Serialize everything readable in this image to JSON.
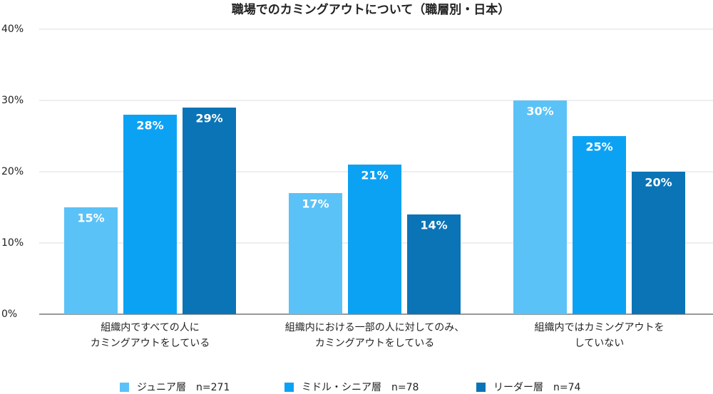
{
  "chart_data": {
    "type": "bar",
    "title": "職場でのカミングアウトについて（職層別・日本）",
    "categories": [
      [
        "組織内ですべての人に",
        "カミングアウトをしている"
      ],
      [
        "組織内における一部の人に対してのみ、",
        "カミングアウトをしている"
      ],
      [
        "組織内ではカミングアウトを",
        "していない"
      ]
    ],
    "series": [
      {
        "name": "ジュニア層　n=271",
        "color": "#5bc2f7",
        "values": [
          15,
          17,
          30
        ],
        "value_labels": [
          "15%",
          "17%",
          "30%"
        ]
      },
      {
        "name": "ミドル・シニア層　n=78",
        "color": "#0ca2f4",
        "values": [
          28,
          21,
          25
        ],
        "value_labels": [
          "28%",
          "21%",
          "25%"
        ]
      },
      {
        "name": "リーダー層　n=74",
        "color": "#0b74b6",
        "values": [
          29,
          14,
          20
        ],
        "value_labels": [
          "29%",
          "14%",
          "20%"
        ]
      }
    ],
    "ylim": [
      0,
      40
    ],
    "yticks": [
      {
        "value": 0,
        "label": "0%"
      },
      {
        "value": 10,
        "label": "10%"
      },
      {
        "value": 20,
        "label": "20%"
      },
      {
        "value": 30,
        "label": "30%"
      },
      {
        "value": 40,
        "label": "40%"
      }
    ],
    "grid": true
  }
}
